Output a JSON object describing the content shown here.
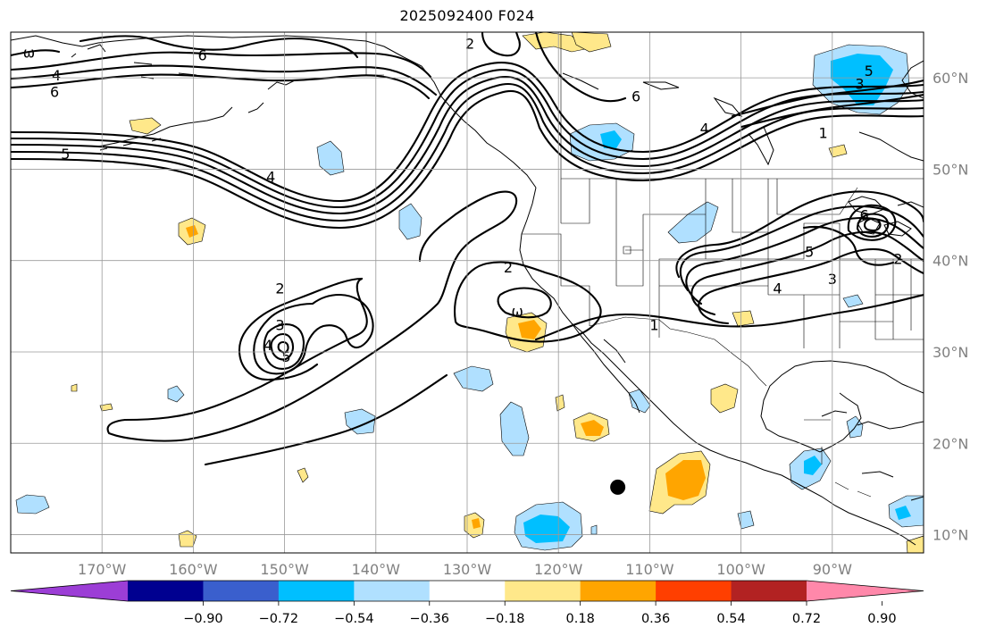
{
  "title": "2025092400 F024",
  "map": {
    "projection": "PlateCarree",
    "lon_range": [
      -180,
      -80
    ],
    "lat_range": [
      8,
      65
    ],
    "gridlines": true,
    "lon_ticks": [
      {
        "lon": -170,
        "label": "170°W"
      },
      {
        "lon": -160,
        "label": "160°W"
      },
      {
        "lon": -150,
        "label": "150°W"
      },
      {
        "lon": -140,
        "label": "140°W"
      },
      {
        "lon": -130,
        "label": "130°W"
      },
      {
        "lon": -120,
        "label": "120°W"
      },
      {
        "lon": -110,
        "label": "110°W"
      },
      {
        "lon": -100,
        "label": "100°W"
      },
      {
        "lon": -90,
        "label": "90°W"
      }
    ],
    "lat_ticks": [
      {
        "lat": 10,
        "label": "10°N"
      },
      {
        "lat": 20,
        "label": "20°N"
      },
      {
        "lat": 30,
        "label": "30°N"
      },
      {
        "lat": 40,
        "label": "40°N"
      },
      {
        "lat": 50,
        "label": "50°N"
      },
      {
        "lat": 60,
        "label": "60°N"
      }
    ],
    "tick_label_color": "#808080",
    "grid_color": "#9a9a9a",
    "marker": {
      "lon": -113.5,
      "lat": 15.2,
      "color": "#000000"
    },
    "contour_labels": [
      {
        "text": "ω",
        "lon": -178.0,
        "lat": 62.8
      },
      {
        "text": "4",
        "lon": -175.0,
        "lat": 60.3
      },
      {
        "text": "6",
        "lon": -175.2,
        "lat": 58.5
      },
      {
        "text": "6",
        "lon": -159.0,
        "lat": 62.5
      },
      {
        "text": "5",
        "lon": -174.0,
        "lat": 51.7
      },
      {
        "text": "4",
        "lon": -151.5,
        "lat": 49.2
      },
      {
        "text": "2",
        "lon": -129.7,
        "lat": 63.8
      },
      {
        "text": "6",
        "lon": -111.5,
        "lat": 58.0
      },
      {
        "text": "4",
        "lon": -104.0,
        "lat": 54.5
      },
      {
        "text": "1",
        "lon": -91.0,
        "lat": 54.0
      },
      {
        "text": "5",
        "lon": -86.0,
        "lat": 60.8
      },
      {
        "text": "3",
        "lon": -87.0,
        "lat": 59.4
      },
      {
        "text": "2",
        "lon": -150.5,
        "lat": 37.0
      },
      {
        "text": "3",
        "lon": -150.5,
        "lat": 33.0
      },
      {
        "text": "4",
        "lon": -151.8,
        "lat": 30.8
      },
      {
        "text": "5",
        "lon": -149.8,
        "lat": 29.5
      },
      {
        "text": "2",
        "lon": -125.5,
        "lat": 39.3
      },
      {
        "text": "ω",
        "lon": -124.5,
        "lat": 34.5
      },
      {
        "text": "1",
        "lon": -109.5,
        "lat": 33.0
      },
      {
        "text": "4",
        "lon": -96.0,
        "lat": 37.0
      },
      {
        "text": "5",
        "lon": -92.5,
        "lat": 41.0
      },
      {
        "text": "3",
        "lon": -90.0,
        "lat": 38.0
      },
      {
        "text": "2",
        "lon": -82.8,
        "lat": 40.2
      },
      {
        "text": "6",
        "lon": -86.5,
        "lat": 45.0
      }
    ]
  },
  "colorbar": {
    "colors": [
      "#9c3ed6",
      "#000090",
      "#3a5fcd",
      "#00bfff",
      "#b0e0ff",
      "#ffffff",
      "#ffe88a",
      "#ffa500",
      "#ff3f00",
      "#b22222",
      "#ff88aa"
    ],
    "tick_labels": [
      "−0.90",
      "−0.72",
      "−0.54",
      "−0.36",
      "−0.18",
      "0.18",
      "0.36",
      "0.54",
      "0.72",
      "0.90"
    ]
  }
}
